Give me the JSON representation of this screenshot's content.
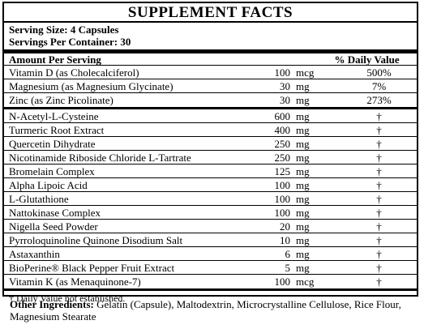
{
  "title": "SUPPLEMENT FACTS",
  "serving_size": "Serving Size: 4 Capsules",
  "servings_per_container": "Servings Per Container: 30",
  "header": {
    "amount": "Amount Per Serving",
    "dv": "% Daily Value"
  },
  "vitamins": [
    {
      "name": "Vitamin D (as Cholecalciferol)",
      "amount": "100",
      "unit": "mcg",
      "dv": "500%"
    },
    {
      "name": "Magnesium (as Magnesium Glycinate)",
      "amount": "30",
      "unit": "mg",
      "dv": "7%"
    },
    {
      "name": "Zinc (as Zinc Picolinate)",
      "amount": "30",
      "unit": "mg",
      "dv": "273%"
    }
  ],
  "others": [
    {
      "name": "N-Acetyl-L-Cysteine",
      "amount": "600",
      "unit": "mg",
      "dv": "†"
    },
    {
      "name": "Turmeric Root Extract",
      "amount": "400",
      "unit": "mg",
      "dv": "†"
    },
    {
      "name": "Quercetin Dihydrate",
      "amount": "250",
      "unit": "mg",
      "dv": "†"
    },
    {
      "name": "Nicotinamide Riboside Chloride L-Tartrate",
      "amount": "250",
      "unit": "mg",
      "dv": "†"
    },
    {
      "name": "Bromelain Complex",
      "amount": "125",
      "unit": "mg",
      "dv": "†"
    },
    {
      "name": "Alpha Lipoic Acid",
      "amount": "100",
      "unit": "mg",
      "dv": "†"
    },
    {
      "name": "L-Glutathione",
      "amount": "100",
      "unit": "mg",
      "dv": "†"
    },
    {
      "name": "Nattokinase Complex",
      "amount": "100",
      "unit": "mg",
      "dv": "†"
    },
    {
      "name": "Nigella Seed Powder",
      "amount": "20",
      "unit": "mg",
      "dv": "†"
    },
    {
      "name": "Pyrroloquinoline Quinone Disodium Salt",
      "amount": "10",
      "unit": "mg",
      "dv": "†"
    },
    {
      "name": "Astaxanthin",
      "amount": "6",
      "unit": "mg",
      "dv": "†"
    },
    {
      "name": "BioPerine® Black Pepper Fruit Extract",
      "amount": "5",
      "unit": "mg",
      "dv": "†"
    },
    {
      "name": "Vitamin K (as Menaquinone-7)",
      "amount": "100",
      "unit": "mcg",
      "dv": "†"
    }
  ],
  "footnote": "† Daily Value not established.",
  "other_ingredients": {
    "label": "Other Ingredients:",
    "text": " Gelatin (Capsule), Maltodextrin, Microcrystalline Cellulose, Rice Flour, Magnesium Stearate"
  }
}
